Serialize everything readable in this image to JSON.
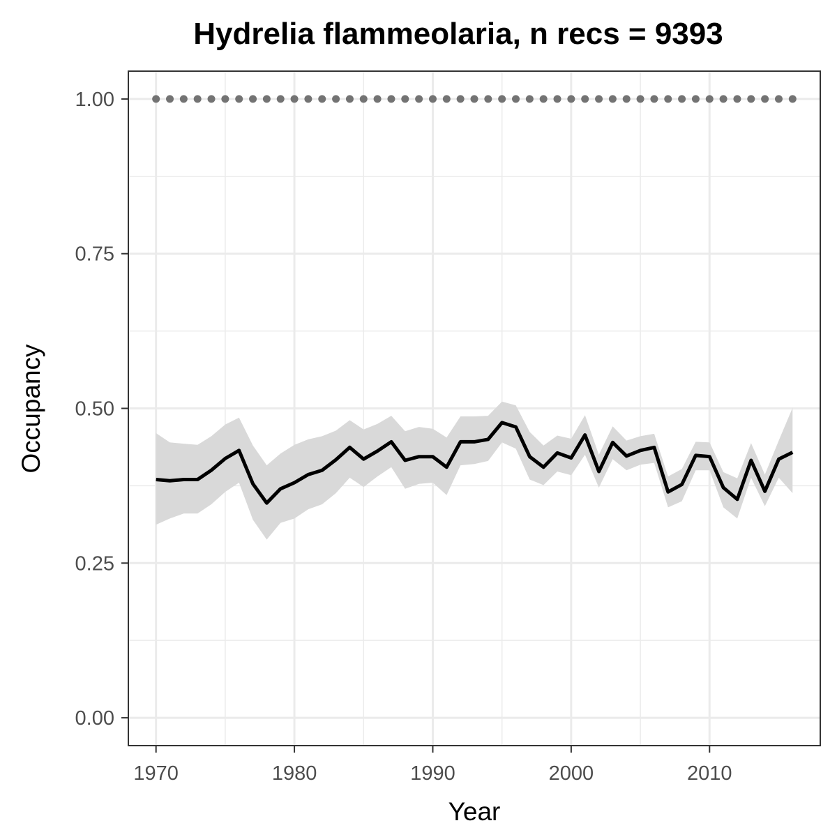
{
  "chart_data": {
    "type": "line",
    "title": "Hydrelia flammeolaria, n recs = 9393",
    "xlabel": "Year",
    "ylabel": "Occupancy",
    "xlim": [
      1968,
      2018
    ],
    "ylim": [
      -0.045,
      1.045
    ],
    "x_ticks": [
      1970,
      1980,
      1990,
      2000,
      2010
    ],
    "x_tick_labels": [
      "1970",
      "1980",
      "1990",
      "2000",
      "2010"
    ],
    "y_ticks": [
      0,
      0.25,
      0.5,
      0.75,
      1
    ],
    "y_tick_labels": [
      "0.00",
      "0.25",
      "0.50",
      "0.75",
      "1.00"
    ],
    "grid": true,
    "colors": {
      "line": "#000000",
      "ribbon": "#d9d9d9",
      "points": "#737373",
      "grid": "#ebebeb",
      "border": "#333333",
      "tick_text": "#4d4d4d"
    },
    "series": [
      {
        "type": "line",
        "x": [
          1970,
          1971,
          1972,
          1973,
          1974,
          1975,
          1976,
          1977,
          1978,
          1979,
          1980,
          1981,
          1982,
          1983,
          1984,
          1985,
          1986,
          1987,
          1988,
          1989,
          1990,
          1991,
          1992,
          1993,
          1994,
          1995,
          1996,
          1997,
          1998,
          1999,
          2000,
          2001,
          2002,
          2003,
          2004,
          2005,
          2006,
          2007,
          2008,
          2009,
          2010,
          2011,
          2012,
          2013,
          2014,
          2015,
          2016
        ],
        "y": [
          0.385,
          0.383,
          0.385,
          0.385,
          0.4,
          0.419,
          0.432,
          0.378,
          0.347,
          0.37,
          0.38,
          0.393,
          0.4,
          0.417,
          0.437,
          0.418,
          0.431,
          0.446,
          0.416,
          0.422,
          0.422,
          0.405,
          0.446,
          0.446,
          0.45,
          0.477,
          0.47,
          0.422,
          0.405,
          0.428,
          0.42,
          0.457,
          0.398,
          0.445,
          0.423,
          0.432,
          0.437,
          0.365,
          0.377,
          0.424,
          0.422,
          0.372,
          0.353,
          0.416,
          0.366,
          0.418,
          0.429
        ]
      },
      {
        "type": "ribbon",
        "x": [
          1970,
          1971,
          1972,
          1973,
          1974,
          1975,
          1976,
          1977,
          1978,
          1979,
          1980,
          1981,
          1982,
          1983,
          1984,
          1985,
          1986,
          1987,
          1988,
          1989,
          1990,
          1991,
          1992,
          1993,
          1994,
          1995,
          1996,
          1997,
          1998,
          1999,
          2000,
          2001,
          2002,
          2003,
          2004,
          2005,
          2006,
          2007,
          2008,
          2009,
          2010,
          2011,
          2012,
          2013,
          2014,
          2015,
          2016
        ],
        "lower": [
          0.312,
          0.322,
          0.33,
          0.33,
          0.345,
          0.365,
          0.38,
          0.32,
          0.288,
          0.315,
          0.322,
          0.337,
          0.345,
          0.363,
          0.388,
          0.373,
          0.39,
          0.405,
          0.37,
          0.378,
          0.38,
          0.36,
          0.408,
          0.41,
          0.415,
          0.445,
          0.435,
          0.385,
          0.376,
          0.398,
          0.392,
          0.425,
          0.372,
          0.418,
          0.4,
          0.409,
          0.412,
          0.34,
          0.35,
          0.4,
          0.4,
          0.34,
          0.322,
          0.388,
          0.342,
          0.388,
          0.363
        ],
        "upper": [
          0.46,
          0.445,
          0.443,
          0.441,
          0.455,
          0.474,
          0.485,
          0.44,
          0.408,
          0.427,
          0.441,
          0.45,
          0.455,
          0.464,
          0.481,
          0.466,
          0.475,
          0.488,
          0.463,
          0.47,
          0.467,
          0.453,
          0.487,
          0.487,
          0.488,
          0.511,
          0.505,
          0.462,
          0.44,
          0.456,
          0.451,
          0.489,
          0.425,
          0.471,
          0.448,
          0.455,
          0.459,
          0.39,
          0.402,
          0.446,
          0.445,
          0.397,
          0.387,
          0.444,
          0.393,
          0.448,
          0.501
        ]
      },
      {
        "type": "points",
        "x": [
          1970,
          1971,
          1972,
          1973,
          1974,
          1975,
          1976,
          1977,
          1978,
          1979,
          1980,
          1981,
          1982,
          1983,
          1984,
          1985,
          1986,
          1987,
          1988,
          1989,
          1990,
          1991,
          1992,
          1993,
          1994,
          1995,
          1996,
          1997,
          1998,
          1999,
          2000,
          2001,
          2002,
          2003,
          2004,
          2005,
          2006,
          2007,
          2008,
          2009,
          2010,
          2011,
          2012,
          2013,
          2014,
          2015,
          2016
        ],
        "y": [
          1,
          1,
          1,
          1,
          1,
          1,
          1,
          1,
          1,
          1,
          1,
          1,
          1,
          1,
          1,
          1,
          1,
          1,
          1,
          1,
          1,
          1,
          1,
          1,
          1,
          1,
          1,
          1,
          1,
          1,
          1,
          1,
          1,
          1,
          1,
          1,
          1,
          1,
          1,
          1,
          1,
          1,
          1,
          1,
          1,
          1,
          1
        ]
      }
    ]
  }
}
